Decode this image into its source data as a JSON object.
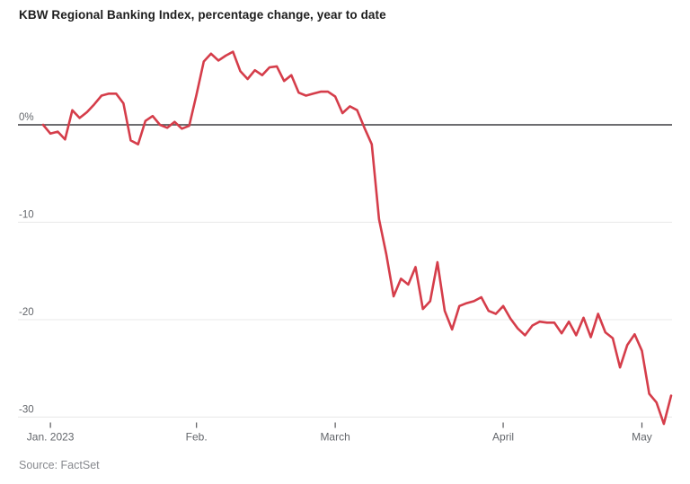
{
  "chart": {
    "title": "KBW Regional Banking Index, percentage change, year to date",
    "source": "Source: FactSet"
  },
  "chart_data": {
    "type": "line",
    "title": "KBW Regional Banking Index, percentage change, year to date",
    "source": "Source: FactSet",
    "ylabel": "percentage change year to date",
    "ylim": [
      -32.5,
      9
    ],
    "grid": "horizontal",
    "legend_position": "none",
    "line_color": "#d53d4a",
    "zero_line_color": "#58585c",
    "grid_color": "#e8e8e8",
    "axis_label_color": "#63666b",
    "tick_color": "#58585c",
    "y_ticks": [
      {
        "value": 0,
        "label": "0%"
      },
      {
        "value": -10,
        "label": "-10"
      },
      {
        "value": -20,
        "label": "-20"
      },
      {
        "value": -30,
        "label": "-30"
      }
    ],
    "x_ticks": [
      {
        "index": 1,
        "label": "Jan. 2023"
      },
      {
        "index": 21,
        "label": "Feb."
      },
      {
        "index": 40,
        "label": "March"
      },
      {
        "index": 63,
        "label": "April"
      },
      {
        "index": 82,
        "label": "May"
      }
    ],
    "series": [
      {
        "name": "KBW Regional Banking Index",
        "dates": [
          "Dec. 30",
          "Jan. 3",
          "Jan. 4",
          "Jan. 5",
          "Jan. 6",
          "Jan. 9",
          "Jan. 10",
          "Jan. 11",
          "Jan. 12",
          "Jan. 13",
          "Jan. 17",
          "Jan. 18",
          "Jan. 19",
          "Jan. 20",
          "Jan. 23",
          "Jan. 24",
          "Jan. 25",
          "Jan. 26",
          "Jan. 27",
          "Jan. 30",
          "Jan. 31",
          "Feb. 1",
          "Feb. 2",
          "Feb. 3",
          "Feb. 6",
          "Feb. 7",
          "Feb. 8",
          "Feb. 9",
          "Feb. 10",
          "Feb. 13",
          "Feb. 14",
          "Feb. 15",
          "Feb. 16",
          "Feb. 17",
          "Feb. 21",
          "Feb. 22",
          "Feb. 23",
          "Feb. 24",
          "Feb. 27",
          "Feb. 28",
          "March 1",
          "March 2",
          "March 3",
          "March 6",
          "March 7",
          "March 8",
          "March 9",
          "March 10",
          "March 13",
          "March 14",
          "March 15",
          "March 16",
          "March 17",
          "March 20",
          "March 21",
          "March 22",
          "March 23",
          "March 24",
          "March 27",
          "March 28",
          "March 29",
          "March 30",
          "March 31",
          "April 3",
          "April 4",
          "April 5",
          "April 6",
          "April 10",
          "April 11",
          "April 12",
          "April 13",
          "April 14",
          "April 17",
          "April 18",
          "April 19",
          "April 20",
          "April 21",
          "April 24",
          "April 25",
          "April 26",
          "April 27",
          "April 28",
          "May 1",
          "May 2",
          "May 3",
          "May 4",
          "May 5"
        ],
        "values": [
          0,
          -0.9,
          -0.7,
          -1.5,
          1.5,
          0.7,
          1.3,
          2.1,
          3.0,
          3.2,
          3.2,
          2.2,
          -1.6,
          -2.0,
          0.4,
          0.9,
          0.0,
          -0.3,
          0.3,
          -0.4,
          -0.1,
          3.1,
          6.5,
          7.3,
          6.6,
          7.1,
          7.5,
          5.5,
          4.7,
          5.6,
          5.1,
          5.9,
          6.0,
          4.5,
          5.1,
          3.3,
          3.0,
          3.2,
          3.4,
          3.4,
          2.9,
          1.2,
          1.9,
          1.5,
          -0.3,
          -2.0,
          -9.7,
          -13.3,
          -17.6,
          -15.8,
          -16.4,
          -14.6,
          -18.9,
          -18.1,
          -14.1,
          -19.1,
          -21.0,
          -18.6,
          -18.3,
          -18.1,
          -17.7,
          -19.1,
          -19.4,
          -18.6,
          -19.9,
          -20.9,
          -21.6,
          -20.6,
          -20.2,
          -20.3,
          -20.3,
          -21.4,
          -20.2,
          -21.6,
          -19.8,
          -21.8,
          -19.4,
          -21.3,
          -21.9,
          -24.9,
          -22.6,
          -21.5,
          -23.2,
          -27.6,
          -28.5,
          -30.7,
          -27.8
        ]
      }
    ]
  }
}
